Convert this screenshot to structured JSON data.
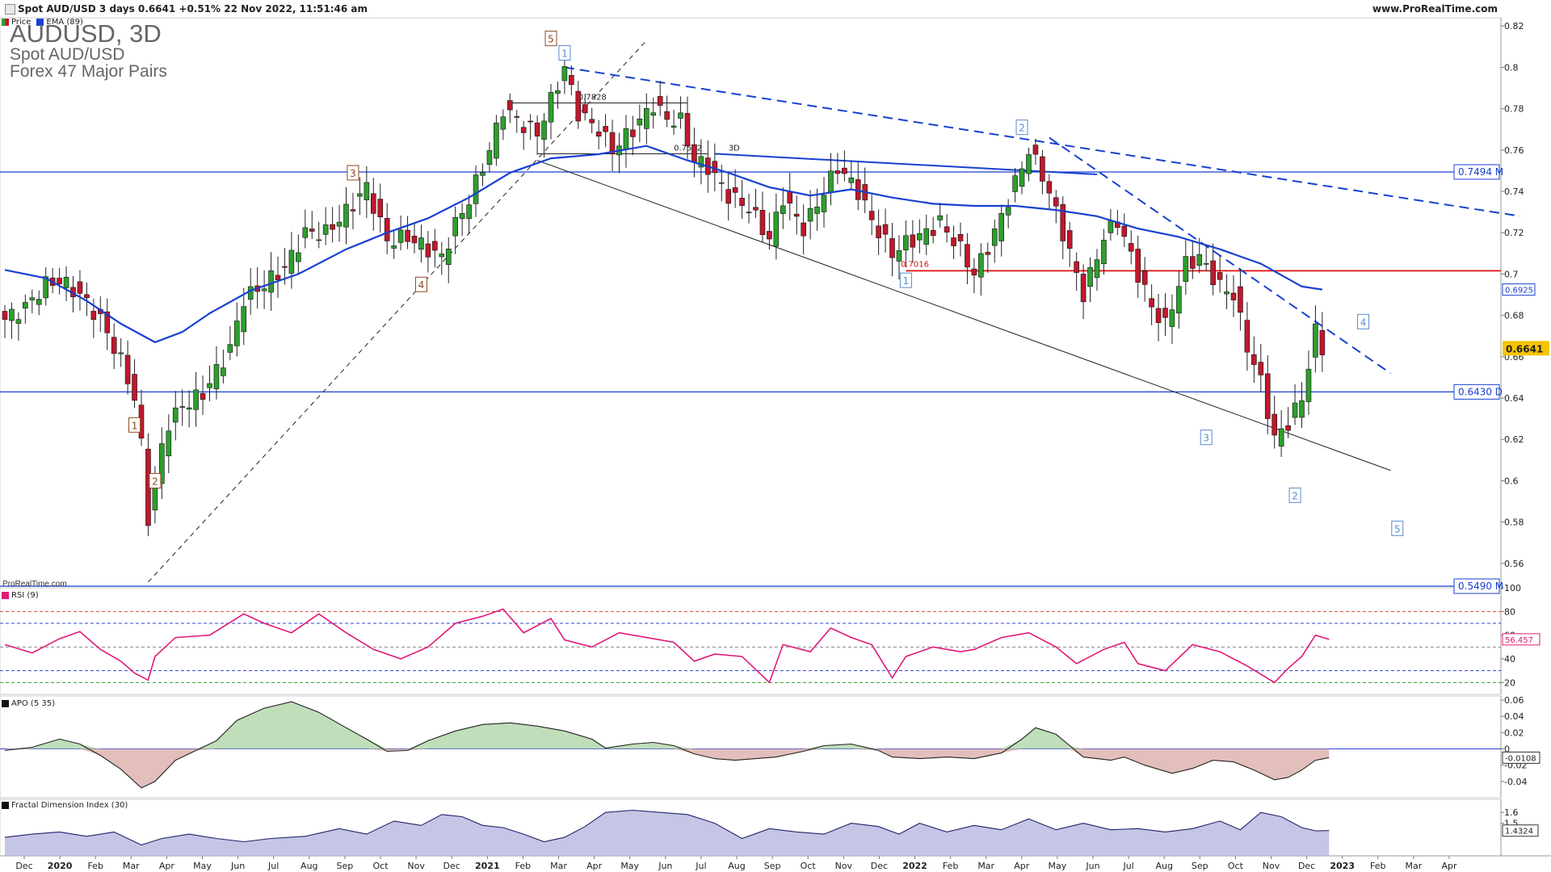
{
  "header": {
    "title": "Spot AUD/USD 3 days 0.6641 +0.51% 22 Nov 2022, 11:51:46 am",
    "site": "www.ProRealTime.com"
  },
  "instrument": {
    "name": "AUDUSD, 3D",
    "full_name": "Spot AUD/USD",
    "group": "Forex 47 Major Pairs"
  },
  "legend": {
    "price": "Price",
    "ema": "EMA (89)",
    "rsi": "RSI (9)",
    "apo": "APO (5 35)",
    "fdi": "Fractal Dimension Index (30)"
  },
  "watermark": "ProRealTime.com",
  "colors": {
    "up": "#2e9e2e",
    "down": "#c0182c",
    "ema": "#1840d0",
    "trend": "#1840d0",
    "support": "#1840d0",
    "resistance": "#e01010",
    "rsi": "#e0187a",
    "apo_pos": "#3f8a3f",
    "apo_neg": "#8a3f3f",
    "fdi": "#22226a",
    "wave_brown": "#8b4a20",
    "wave_blue": "#5a8ad0"
  },
  "chart_data": [
    {
      "type": "candlestick",
      "title": "AUDUSD, 3D",
      "x": [
        "Dec",
        "2020",
        "Feb",
        "Mar",
        "Apr",
        "May",
        "Jun",
        "Jul",
        "Aug",
        "Sep",
        "Oct",
        "Nov",
        "Dec",
        "2021",
        "Feb",
        "Mar",
        "Apr",
        "May",
        "Jun",
        "Jul",
        "Aug",
        "Sep",
        "Oct",
        "Nov",
        "Dec",
        "2022",
        "Feb",
        "Mar",
        "Apr",
        "May",
        "Jun",
        "Jul",
        "Aug",
        "Sep",
        "Oct",
        "Nov",
        "Dec",
        "2023",
        "Feb",
        "Mar",
        "Apr"
      ],
      "ylim": [
        0.549,
        0.824
      ],
      "yticks": [
        0.56,
        0.58,
        0.6,
        0.62,
        0.64,
        0.66,
        0.68,
        0.7,
        0.72,
        0.74,
        0.76,
        0.78,
        0.8,
        0.82
      ],
      "close_path": [
        [
          0,
          0.678
        ],
        [
          3,
          0.684
        ],
        [
          6,
          0.695
        ],
        [
          8,
          0.697
        ],
        [
          11,
          0.69
        ],
        [
          14,
          0.678
        ],
        [
          17,
          0.658
        ],
        [
          19,
          0.64
        ],
        [
          20,
          0.617
        ],
        [
          21,
          0.582
        ],
        [
          22,
          0.598
        ],
        [
          23,
          0.616
        ],
        [
          24,
          0.628
        ],
        [
          26,
          0.636
        ],
        [
          29,
          0.642
        ],
        [
          33,
          0.664
        ],
        [
          35,
          0.688
        ],
        [
          38,
          0.695
        ],
        [
          41,
          0.703
        ],
        [
          44,
          0.72
        ],
        [
          47,
          0.72
        ],
        [
          50,
          0.73
        ],
        [
          53,
          0.742
        ],
        [
          56,
          0.716
        ],
        [
          59,
          0.718
        ],
        [
          62,
          0.712
        ],
        [
          64,
          0.708
        ],
        [
          66,
          0.724
        ],
        [
          68,
          0.736
        ],
        [
          71,
          0.76
        ],
        [
          73,
          0.78
        ],
        [
          76,
          0.772
        ],
        [
          78,
          0.768
        ],
        [
          80,
          0.784
        ],
        [
          82,
          0.8
        ],
        [
          84,
          0.778
        ],
        [
          87,
          0.77
        ],
        [
          89,
          0.76
        ],
        [
          92,
          0.77
        ],
        [
          95,
          0.782
        ],
        [
          97,
          0.775
        ],
        [
          99,
          0.774
        ],
        [
          101,
          0.755
        ],
        [
          103,
          0.752
        ],
        [
          106,
          0.738
        ],
        [
          109,
          0.732
        ],
        [
          112,
          0.717
        ],
        [
          114,
          0.737
        ],
        [
          117,
          0.722
        ],
        [
          120,
          0.74
        ],
        [
          122,
          0.752
        ],
        [
          125,
          0.74
        ],
        [
          127,
          0.726
        ],
        [
          130,
          0.71
        ],
        [
          132,
          0.715
        ],
        [
          135,
          0.72
        ],
        [
          137,
          0.725
        ],
        [
          140,
          0.712
        ],
        [
          142,
          0.7
        ],
        [
          145,
          0.72
        ],
        [
          148,
          0.744
        ],
        [
          150,
          0.76
        ],
        [
          152,
          0.748
        ],
        [
          154,
          0.73
        ],
        [
          156,
          0.71
        ],
        [
          158,
          0.69
        ],
        [
          161,
          0.718
        ],
        [
          163,
          0.726
        ],
        [
          166,
          0.7
        ],
        [
          168,
          0.684
        ],
        [
          170,
          0.675
        ],
        [
          173,
          0.705
        ],
        [
          175,
          0.708
        ],
        [
          178,
          0.694
        ],
        [
          180,
          0.69
        ],
        [
          182,
          0.665
        ],
        [
          184,
          0.648
        ],
        [
          186,
          0.62
        ],
        [
          188,
          0.628
        ],
        [
          190,
          0.64
        ],
        [
          192,
          0.672
        ],
        [
          193,
          0.6641
        ]
      ],
      "ema_path": [
        [
          0,
          0.702
        ],
        [
          6,
          0.698
        ],
        [
          12,
          0.687
        ],
        [
          17,
          0.676
        ],
        [
          22,
          0.667
        ],
        [
          26,
          0.672
        ],
        [
          30,
          0.681
        ],
        [
          36,
          0.692
        ],
        [
          43,
          0.7
        ],
        [
          50,
          0.712
        ],
        [
          56,
          0.72
        ],
        [
          62,
          0.727
        ],
        [
          68,
          0.737
        ],
        [
          74,
          0.749
        ],
        [
          80,
          0.756
        ],
        [
          87,
          0.758
        ],
        [
          94,
          0.762
        ],
        [
          100,
          0.755
        ],
        [
          106,
          0.749
        ],
        [
          112,
          0.742
        ],
        [
          118,
          0.738
        ],
        [
          124,
          0.741
        ],
        [
          130,
          0.737
        ],
        [
          136,
          0.734
        ],
        [
          142,
          0.733
        ],
        [
          148,
          0.733
        ],
        [
          154,
          0.731
        ],
        [
          160,
          0.728
        ],
        [
          166,
          0.722
        ],
        [
          172,
          0.718
        ],
        [
          178,
          0.712
        ],
        [
          184,
          0.705
        ],
        [
          190,
          0.694
        ],
        [
          193,
          0.6925
        ]
      ],
      "ema_value": "0.6925",
      "last_price": "0.6641",
      "levels": [
        {
          "label": "0.7494 M",
          "value": 0.7494
        },
        {
          "label": "0.6430 D",
          "value": 0.643
        },
        {
          "label": "0.5490 M",
          "value": 0.549
        }
      ],
      "resistance": {
        "label": "0.7016",
        "value": 0.7016
      },
      "range_labels": [
        "0.7828",
        "0.7582",
        "3D"
      ],
      "wave_labels": [
        {
          "t": "1",
          "style": "brown",
          "x": 19,
          "y": 0.627
        },
        {
          "t": "2",
          "style": "brown",
          "x": 22,
          "y": 0.6
        },
        {
          "t": "3",
          "style": "brown",
          "x": 51,
          "y": 0.749
        },
        {
          "t": "4",
          "style": "brown",
          "x": 61,
          "y": 0.695
        },
        {
          "t": "5",
          "style": "brown",
          "x": 80,
          "y": 0.814
        },
        {
          "t": "1",
          "style": "blue",
          "x": 82,
          "y": 0.807
        },
        {
          "t": "2",
          "style": "blue",
          "x": 149,
          "y": 0.771
        },
        {
          "t": "1",
          "style": "blue",
          "x": 132,
          "y": 0.697
        },
        {
          "t": "3",
          "style": "blue",
          "x": 176,
          "y": 0.621
        },
        {
          "t": "2",
          "style": "blue",
          "x": 189,
          "y": 0.593
        },
        {
          "t": "4",
          "style": "blue",
          "x": 199,
          "y": 0.677
        },
        {
          "t": "5",
          "style": "blue",
          "x": 204,
          "y": 0.577
        }
      ]
    },
    {
      "type": "line",
      "title": "RSI (9)",
      "ylim": [
        10,
        100
      ],
      "yticks": [
        20,
        40,
        60,
        80,
        100
      ],
      "last_value": "56.457",
      "guides": [
        80,
        70,
        50,
        30,
        20
      ],
      "path": [
        [
          0,
          52
        ],
        [
          4,
          45
        ],
        [
          8,
          57
        ],
        [
          11,
          63
        ],
        [
          14,
          48
        ],
        [
          17,
          38
        ],
        [
          19,
          28
        ],
        [
          21,
          22
        ],
        [
          22,
          42
        ],
        [
          25,
          58
        ],
        [
          30,
          60
        ],
        [
          35,
          78
        ],
        [
          38,
          70
        ],
        [
          42,
          62
        ],
        [
          46,
          78
        ],
        [
          50,
          62
        ],
        [
          54,
          48
        ],
        [
          58,
          40
        ],
        [
          62,
          50
        ],
        [
          66,
          70
        ],
        [
          70,
          76
        ],
        [
          73,
          82
        ],
        [
          76,
          62
        ],
        [
          80,
          74
        ],
        [
          82,
          56
        ],
        [
          86,
          50
        ],
        [
          90,
          62
        ],
        [
          94,
          58
        ],
        [
          98,
          54
        ],
        [
          101,
          38
        ],
        [
          104,
          44
        ],
        [
          108,
          42
        ],
        [
          112,
          20
        ],
        [
          114,
          52
        ],
        [
          118,
          46
        ],
        [
          121,
          66
        ],
        [
          124,
          58
        ],
        [
          127,
          52
        ],
        [
          130,
          24
        ],
        [
          132,
          42
        ],
        [
          136,
          50
        ],
        [
          140,
          46
        ],
        [
          142,
          48
        ],
        [
          146,
          58
        ],
        [
          150,
          62
        ],
        [
          154,
          50
        ],
        [
          157,
          36
        ],
        [
          161,
          48
        ],
        [
          164,
          54
        ],
        [
          166,
          36
        ],
        [
          170,
          30
        ],
        [
          174,
          52
        ],
        [
          178,
          46
        ],
        [
          182,
          34
        ],
        [
          186,
          20
        ],
        [
          188,
          32
        ],
        [
          190,
          42
        ],
        [
          192,
          60
        ],
        [
          194,
          56.457
        ]
      ]
    },
    {
      "type": "area",
      "title": "APO (5 35)",
      "ylim": [
        -0.06,
        0.065
      ],
      "yticks": [
        -0.04,
        -0.02,
        0,
        0.02,
        0.04,
        0.06
      ],
      "last_value": "-0.0108",
      "path": [
        [
          0,
          -0.002
        ],
        [
          4,
          0.002
        ],
        [
          8,
          0.012
        ],
        [
          11,
          0.006
        ],
        [
          14,
          -0.008
        ],
        [
          17,
          -0.025
        ],
        [
          20,
          -0.048
        ],
        [
          22,
          -0.04
        ],
        [
          25,
          -0.014
        ],
        [
          28,
          -0.002
        ],
        [
          31,
          0.01
        ],
        [
          34,
          0.035
        ],
        [
          38,
          0.05
        ],
        [
          42,
          0.058
        ],
        [
          46,
          0.045
        ],
        [
          50,
          0.026
        ],
        [
          53,
          0.012
        ],
        [
          56,
          -0.003
        ],
        [
          59,
          -0.002
        ],
        [
          62,
          0.01
        ],
        [
          66,
          0.022
        ],
        [
          70,
          0.03
        ],
        [
          74,
          0.032
        ],
        [
          78,
          0.028
        ],
        [
          82,
          0.022
        ],
        [
          86,
          0.012
        ],
        [
          88,
          0.001
        ],
        [
          92,
          0.006
        ],
        [
          95,
          0.008
        ],
        [
          98,
          0.004
        ],
        [
          101,
          -0.006
        ],
        [
          104,
          -0.012
        ],
        [
          107,
          -0.014
        ],
        [
          110,
          -0.012
        ],
        [
          113,
          -0.01
        ],
        [
          117,
          -0.003
        ],
        [
          120,
          0.004
        ],
        [
          124,
          0.006
        ],
        [
          128,
          -0.002
        ],
        [
          130,
          -0.01
        ],
        [
          134,
          -0.012
        ],
        [
          138,
          -0.01
        ],
        [
          142,
          -0.012
        ],
        [
          146,
          -0.005
        ],
        [
          149,
          0.012
        ],
        [
          151,
          0.026
        ],
        [
          154,
          0.018
        ],
        [
          156,
          0.004
        ],
        [
          158,
          -0.01
        ],
        [
          162,
          -0.014
        ],
        [
          164,
          -0.01
        ],
        [
          167,
          -0.02
        ],
        [
          171,
          -0.03
        ],
        [
          174,
          -0.024
        ],
        [
          177,
          -0.014
        ],
        [
          180,
          -0.016
        ],
        [
          183,
          -0.026
        ],
        [
          186,
          -0.038
        ],
        [
          188,
          -0.035
        ],
        [
          190,
          -0.026
        ],
        [
          192,
          -0.014
        ],
        [
          194,
          -0.0108
        ]
      ]
    },
    {
      "type": "area",
      "title": "Fractal Dimension Index (30)",
      "ylim": [
        1.2,
        1.72
      ],
      "yticks": [
        1.5,
        1.6
      ],
      "last_value": "1.4324",
      "path": [
        [
          0,
          1.37
        ],
        [
          4,
          1.4
        ],
        [
          8,
          1.42
        ],
        [
          12,
          1.38
        ],
        [
          16,
          1.42
        ],
        [
          20,
          1.3
        ],
        [
          23,
          1.36
        ],
        [
          27,
          1.4
        ],
        [
          31,
          1.36
        ],
        [
          35,
          1.33
        ],
        [
          39,
          1.36
        ],
        [
          44,
          1.38
        ],
        [
          49,
          1.45
        ],
        [
          53,
          1.4
        ],
        [
          57,
          1.52
        ],
        [
          61,
          1.48
        ],
        [
          64,
          1.58
        ],
        [
          67,
          1.56
        ],
        [
          70,
          1.48
        ],
        [
          73,
          1.46
        ],
        [
          76,
          1.4
        ],
        [
          79,
          1.33
        ],
        [
          82,
          1.37
        ],
        [
          85,
          1.47
        ],
        [
          88,
          1.6
        ],
        [
          92,
          1.62
        ],
        [
          96,
          1.6
        ],
        [
          100,
          1.58
        ],
        [
          104,
          1.5
        ],
        [
          108,
          1.36
        ],
        [
          112,
          1.45
        ],
        [
          116,
          1.42
        ],
        [
          120,
          1.4
        ],
        [
          124,
          1.5
        ],
        [
          128,
          1.47
        ],
        [
          131,
          1.4
        ],
        [
          134,
          1.5
        ],
        [
          138,
          1.42
        ],
        [
          142,
          1.48
        ],
        [
          146,
          1.44
        ],
        [
          150,
          1.54
        ],
        [
          154,
          1.44
        ],
        [
          158,
          1.5
        ],
        [
          162,
          1.44
        ],
        [
          166,
          1.45
        ],
        [
          170,
          1.42
        ],
        [
          174,
          1.45
        ],
        [
          178,
          1.52
        ],
        [
          181,
          1.44
        ],
        [
          184,
          1.6
        ],
        [
          187,
          1.56
        ],
        [
          190,
          1.46
        ],
        [
          192,
          1.43
        ],
        [
          194,
          1.4324
        ]
      ]
    }
  ]
}
